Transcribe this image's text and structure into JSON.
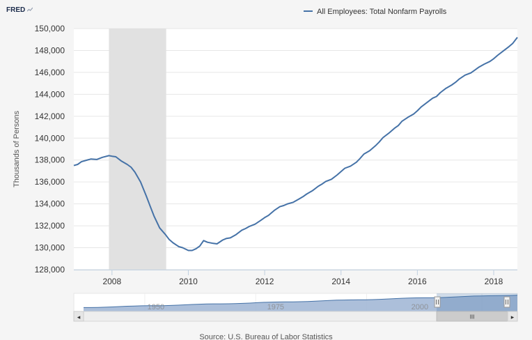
{
  "brand": {
    "logo_text": "FRED",
    "logo_icon": "fred-chart-icon"
  },
  "footer": {
    "source": "Source: U.S. Bureau of Labor Statistics"
  },
  "navigator": {
    "tick_labels": [
      "1950",
      "1975",
      "2000"
    ],
    "grip_symbol": "III",
    "left_arrow": "◂",
    "right_arrow": "▸",
    "selection_start_fraction": 0.818,
    "selection_end_fraction": 1.0
  },
  "colors": {
    "series": "#4572a7",
    "recession": "#e1e1e1",
    "grid": "#e6e6e6",
    "navigator_fill": "#9db4d3",
    "navigator_line": "#4572a7"
  },
  "chart_data": {
    "type": "line",
    "ylabel": "Thousands of Persons",
    "xlabel": "",
    "legend": {
      "position": "top-right",
      "entries": [
        "All Employees: Total Nonfarm Payrolls"
      ]
    },
    "ylim": [
      128000,
      150000
    ],
    "yticks": [
      "128,000",
      "130,000",
      "132,000",
      "134,000",
      "136,000",
      "138,000",
      "140,000",
      "142,000",
      "144,000",
      "146,000",
      "148,000",
      "150,000"
    ],
    "xlim": [
      2007.0,
      2018.62
    ],
    "xticks": [
      "2008",
      "2010",
      "2012",
      "2014",
      "2016",
      "2018"
    ],
    "grid": true,
    "recession_bands": [
      [
        2007.92,
        2009.42
      ]
    ],
    "series": [
      {
        "name": "All Employees: Total Nonfarm Payrolls",
        "x": [
          2007.0,
          2007.1,
          2007.2,
          2007.3,
          2007.45,
          2007.6,
          2007.75,
          2007.92,
          2008.0,
          2008.1,
          2008.25,
          2008.4,
          2008.5,
          2008.6,
          2008.75,
          2008.9,
          2009.0,
          2009.1,
          2009.25,
          2009.4,
          2009.5,
          2009.6,
          2009.75,
          2009.85,
          2010.0,
          2010.1,
          2010.2,
          2010.3,
          2010.4,
          2010.5,
          2010.65,
          2010.75,
          2010.9,
          2011.0,
          2011.1,
          2011.25,
          2011.4,
          2011.5,
          2011.6,
          2011.75,
          2011.9,
          2012.0,
          2012.1,
          2012.25,
          2012.4,
          2012.5,
          2012.6,
          2012.75,
          2012.9,
          2013.0,
          2013.1,
          2013.25,
          2013.4,
          2013.5,
          2013.6,
          2013.75,
          2013.9,
          2014.0,
          2014.1,
          2014.25,
          2014.4,
          2014.5,
          2014.6,
          2014.75,
          2014.9,
          2015.0,
          2015.1,
          2015.25,
          2015.4,
          2015.5,
          2015.6,
          2015.75,
          2015.9,
          2016.0,
          2016.1,
          2016.25,
          2016.4,
          2016.5,
          2016.6,
          2016.75,
          2016.9,
          2017.0,
          2017.1,
          2017.25,
          2017.4,
          2017.5,
          2017.6,
          2017.75,
          2017.9,
          2018.0,
          2018.1,
          2018.25,
          2018.4,
          2018.5,
          2018.62
        ],
        "values": [
          137500,
          137600,
          137850,
          137950,
          138100,
          138050,
          138250,
          138400,
          138350,
          138300,
          137900,
          137600,
          137350,
          136900,
          136000,
          134700,
          133800,
          132900,
          131800,
          131200,
          130750,
          130450,
          130100,
          130000,
          129750,
          129750,
          129900,
          130150,
          130650,
          130500,
          130400,
          130350,
          130700,
          130850,
          130900,
          131200,
          131600,
          131750,
          131950,
          132150,
          132500,
          132750,
          132950,
          133400,
          133750,
          133850,
          134000,
          134150,
          134450,
          134650,
          134900,
          135200,
          135600,
          135800,
          136050,
          136250,
          136650,
          136950,
          137250,
          137450,
          137800,
          138150,
          138550,
          138850,
          139300,
          139650,
          140050,
          140450,
          140900,
          141150,
          141550,
          141900,
          142200,
          142500,
          142850,
          143250,
          143650,
          143800,
          144150,
          144550,
          144850,
          145100,
          145400,
          145750,
          145950,
          146200,
          146450,
          146750,
          147000,
          147250,
          147550,
          147950,
          148350,
          148650,
          149200
        ]
      }
    ]
  }
}
